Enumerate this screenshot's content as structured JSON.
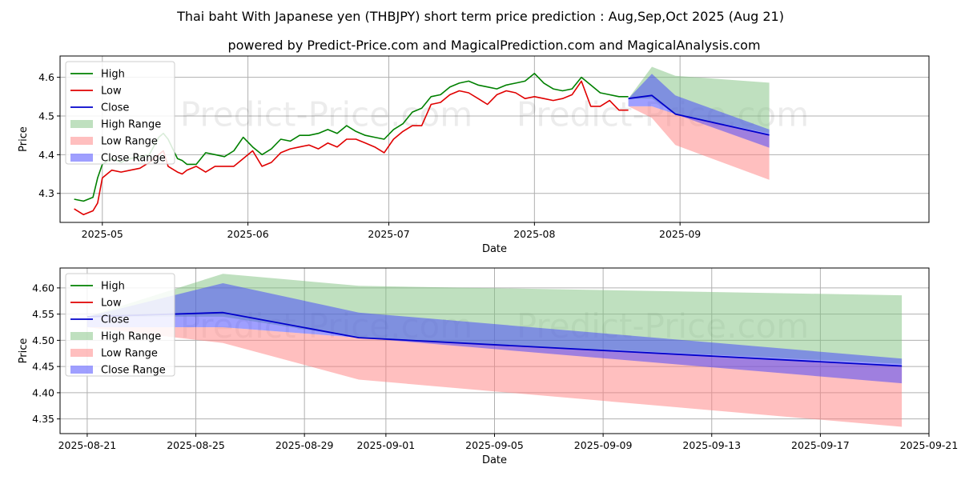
{
  "header": {
    "title": "Thai baht With Japanese yen (THBJPY) short term price prediction : Aug,Sep,Oct 2025 (Aug 21)",
    "subtitle": "powered by Predict-Price.com and MagicalPrediction.com and MagicalAnalysis.com"
  },
  "watermark": "Predict-Price.com",
  "colors": {
    "high": "#008000",
    "low": "#e00000",
    "close": "#0000cc",
    "high_range": "#7fc27f",
    "low_range": "#ff8080",
    "close_range": "#4040ff"
  },
  "legend": [
    "High",
    "Low",
    "Close",
    "High Range",
    "Low Range",
    "Close Range"
  ],
  "chart_data": [
    {
      "type": "line",
      "xlabel": "Date",
      "ylabel": "Price",
      "legend_position": "top-left",
      "grid": true,
      "x_ticks": [
        "2025-05",
        "2025-06",
        "2025-07",
        "2025-08",
        "2025-09"
      ],
      "y_ticks": [
        "4.3",
        "4.4",
        "4.5",
        "4.6"
      ],
      "xlim": [
        "2025-04-22",
        "2025-10-24"
      ],
      "ylim": [
        4.225,
        4.655
      ],
      "history": {
        "dates": [
          "2025-04-25",
          "2025-04-27",
          "2025-04-29",
          "2025-04-30",
          "2025-05-01",
          "2025-05-03",
          "2025-05-05",
          "2025-05-07",
          "2025-05-09",
          "2025-05-11",
          "2025-05-13",
          "2025-05-14",
          "2025-05-15",
          "2025-05-17",
          "2025-05-18",
          "2025-05-19",
          "2025-05-21",
          "2025-05-23",
          "2025-05-25",
          "2025-05-27",
          "2025-05-29",
          "2025-05-31",
          "2025-06-02",
          "2025-06-04",
          "2025-06-06",
          "2025-06-08",
          "2025-06-10",
          "2025-06-12",
          "2025-06-14",
          "2025-06-16",
          "2025-06-18",
          "2025-06-20",
          "2025-06-22",
          "2025-06-24",
          "2025-06-26",
          "2025-06-28",
          "2025-06-30",
          "2025-07-02",
          "2025-07-04",
          "2025-07-06",
          "2025-07-08",
          "2025-07-10",
          "2025-07-12",
          "2025-07-14",
          "2025-07-16",
          "2025-07-18",
          "2025-07-20",
          "2025-07-22",
          "2025-07-24",
          "2025-07-26",
          "2025-07-28",
          "2025-07-30",
          "2025-08-01",
          "2025-08-03",
          "2025-08-05",
          "2025-08-07",
          "2025-08-09",
          "2025-08-11",
          "2025-08-13",
          "2025-08-15",
          "2025-08-17",
          "2025-08-19",
          "2025-08-21"
        ],
        "high": [
          4.285,
          4.28,
          4.29,
          4.34,
          4.375,
          4.39,
          4.38,
          4.39,
          4.395,
          4.4,
          4.445,
          4.455,
          4.44,
          4.39,
          4.385,
          4.375,
          4.375,
          4.405,
          4.4,
          4.395,
          4.41,
          4.445,
          4.42,
          4.4,
          4.415,
          4.44,
          4.435,
          4.45,
          4.45,
          4.455,
          4.465,
          4.455,
          4.475,
          4.46,
          4.45,
          4.445,
          4.44,
          4.465,
          4.48,
          4.51,
          4.52,
          4.55,
          4.555,
          4.575,
          4.585,
          4.59,
          4.58,
          4.575,
          4.57,
          4.58,
          4.585,
          4.59,
          4.61,
          4.585,
          4.57,
          4.565,
          4.57,
          4.6,
          4.58,
          4.56,
          4.555,
          4.55,
          4.55
        ],
        "low": [
          4.26,
          4.245,
          4.255,
          4.275,
          4.34,
          4.36,
          4.355,
          4.36,
          4.365,
          4.38,
          4.4,
          4.41,
          4.37,
          4.355,
          4.35,
          4.36,
          4.37,
          4.355,
          4.37,
          4.37,
          4.37,
          4.39,
          4.41,
          4.37,
          4.38,
          4.405,
          4.415,
          4.42,
          4.425,
          4.415,
          4.43,
          4.42,
          4.44,
          4.44,
          4.43,
          4.42,
          4.405,
          4.44,
          4.46,
          4.475,
          4.475,
          4.53,
          4.535,
          4.555,
          4.565,
          4.56,
          4.545,
          4.53,
          4.555,
          4.565,
          4.56,
          4.545,
          4.55,
          4.545,
          4.54,
          4.545,
          4.555,
          4.59,
          4.525,
          4.525,
          4.54,
          4.515,
          4.515
        ]
      },
      "forecast": {
        "dates": [
          "2025-08-21",
          "2025-08-26",
          "2025-08-31",
          "2025-09-20"
        ],
        "close": [
          4.545,
          4.553,
          4.505,
          4.451
        ],
        "high_range": {
          "upper": [
            4.545,
            4.627,
            4.604,
            4.586
          ],
          "lower": [
            4.545,
            4.545,
            4.505,
            4.455
          ]
        },
        "low_range": {
          "upper": [
            4.525,
            4.525,
            4.505,
            4.45
          ],
          "lower": [
            4.525,
            4.495,
            4.425,
            4.335
          ]
        },
        "close_range": {
          "upper": [
            4.545,
            4.609,
            4.553,
            4.465
          ],
          "lower": [
            4.525,
            4.525,
            4.505,
            4.418
          ]
        }
      }
    },
    {
      "type": "line",
      "xlabel": "Date",
      "ylabel": "Price",
      "legend_position": "top-left",
      "grid": true,
      "x_ticks": [
        "2025-08-21",
        "2025-08-25",
        "2025-08-29",
        "2025-09-01",
        "2025-09-05",
        "2025-09-09",
        "2025-09-13",
        "2025-09-17",
        "2025-09-21"
      ],
      "y_ticks": [
        "4.35",
        "4.40",
        "4.45",
        "4.50",
        "4.55",
        "4.60"
      ],
      "xlim": [
        "2025-08-20",
        "2025-09-21"
      ],
      "ylim": [
        4.322,
        4.638
      ],
      "forecast": {
        "dates": [
          "2025-08-21",
          "2025-08-26",
          "2025-08-31",
          "2025-09-20"
        ],
        "close": [
          4.545,
          4.553,
          4.505,
          4.451
        ],
        "high_range": {
          "upper": [
            4.545,
            4.627,
            4.604,
            4.586
          ],
          "lower": [
            4.545,
            4.545,
            4.505,
            4.455
          ]
        },
        "low_range": {
          "upper": [
            4.525,
            4.525,
            4.505,
            4.45
          ],
          "lower": [
            4.525,
            4.495,
            4.425,
            4.335
          ]
        },
        "close_range": {
          "upper": [
            4.545,
            4.609,
            4.553,
            4.465
          ],
          "lower": [
            4.525,
            4.525,
            4.505,
            4.418
          ]
        }
      }
    }
  ]
}
